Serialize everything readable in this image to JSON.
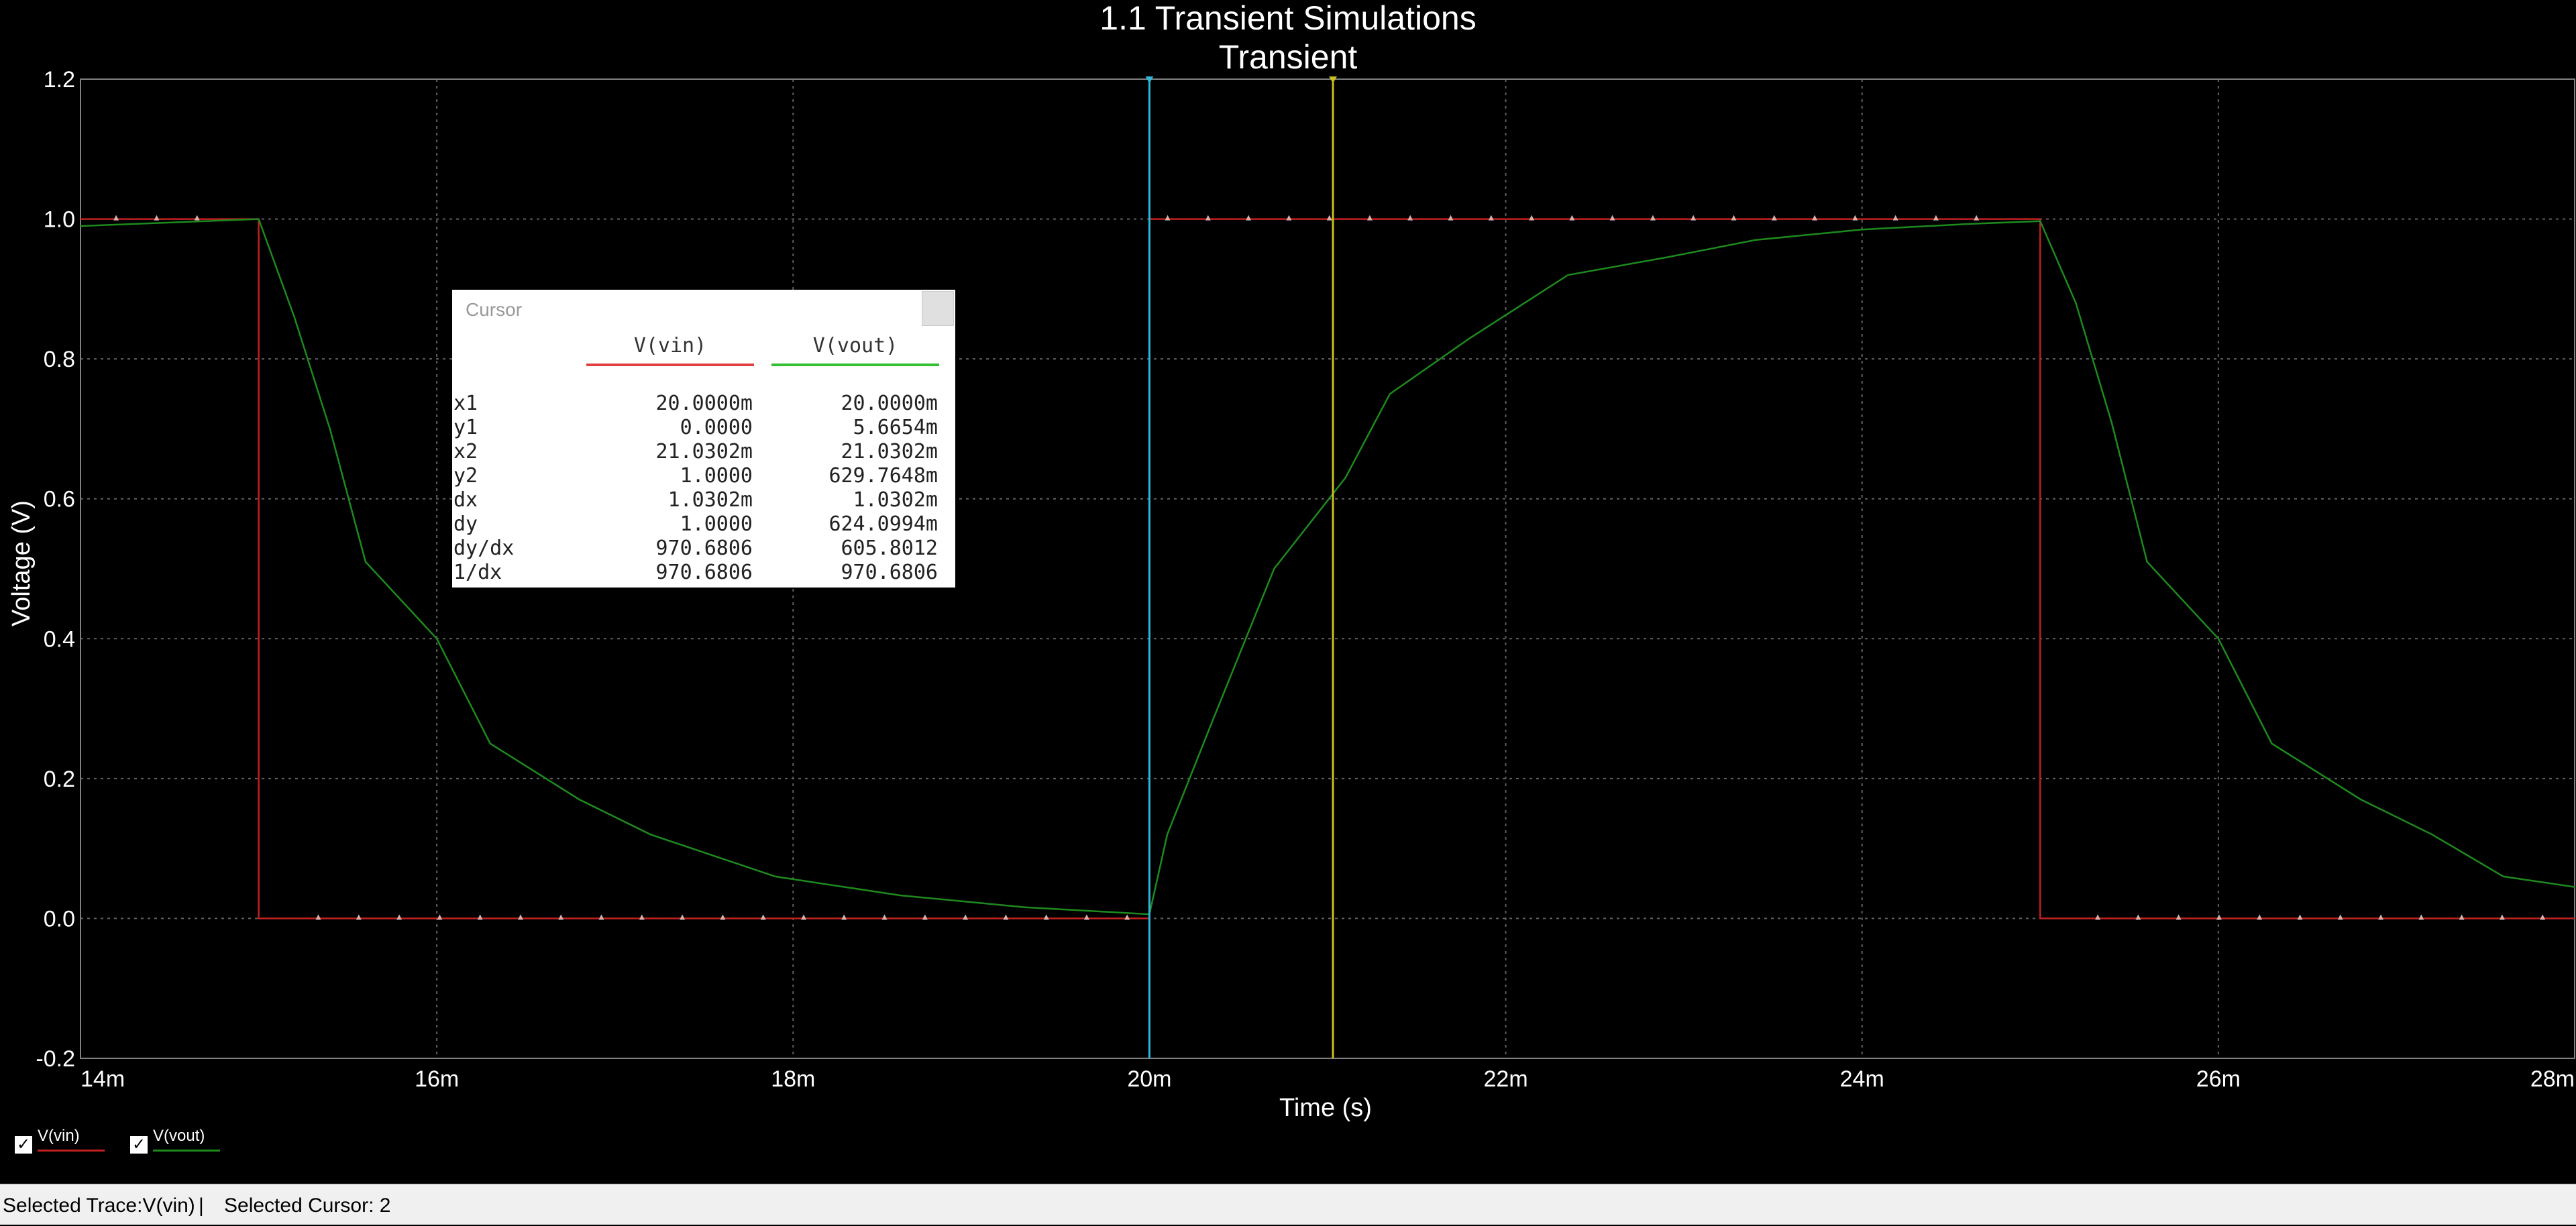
{
  "chart_data": {
    "type": "line",
    "title": "1.1 Transient Simulations",
    "subtitle": "Transient",
    "xlabel": "Time (s)",
    "ylabel": "Voltage (V)",
    "xlim": [
      0.014,
      0.028
    ],
    "ylim": [
      -0.2,
      1.2
    ],
    "x_ticks": [
      {
        "value": 0.014,
        "label": "14m"
      },
      {
        "value": 0.016,
        "label": "16m"
      },
      {
        "value": 0.018,
        "label": "18m"
      },
      {
        "value": 0.02,
        "label": "20m"
      },
      {
        "value": 0.022,
        "label": "22m"
      },
      {
        "value": 0.024,
        "label": "24m"
      },
      {
        "value": 0.026,
        "label": "26m"
      },
      {
        "value": 0.028,
        "label": "28m"
      }
    ],
    "y_ticks": [
      {
        "value": -0.2,
        "label": "-0.2"
      },
      {
        "value": 0.0,
        "label": "0.0"
      },
      {
        "value": 0.2,
        "label": "0.2"
      },
      {
        "value": 0.4,
        "label": "0.4"
      },
      {
        "value": 0.6,
        "label": "0.6"
      },
      {
        "value": 0.8,
        "label": "0.8"
      },
      {
        "value": 1.0,
        "label": "1.0"
      },
      {
        "value": 1.2,
        "label": "1.2"
      }
    ],
    "grid": true,
    "series": [
      {
        "name": "V(vin)",
        "color": "#c02020",
        "x": [
          0.014,
          0.015,
          0.015,
          0.02,
          0.02,
          0.025,
          0.025,
          0.028
        ],
        "y": [
          1.0,
          1.0,
          0.0,
          0.0,
          1.0,
          1.0,
          0.0,
          0.0
        ],
        "marker_x_start": 0.0142,
        "marker_spacing": 0.000227
      },
      {
        "name": "V(vout)",
        "color": "#1e8a1e",
        "x": [
          0.014,
          0.015,
          0.0152,
          0.0154,
          0.0156,
          0.016,
          0.0163,
          0.0168,
          0.0172,
          0.0179,
          0.0186,
          0.0193,
          0.02,
          0.0201,
          0.02035,
          0.0207,
          0.0211,
          0.02135,
          0.0218,
          0.02235,
          0.0229,
          0.0234,
          0.024,
          0.0246,
          0.025,
          0.0252,
          0.0254,
          0.0256,
          0.026,
          0.0263,
          0.0268,
          0.0272,
          0.0276,
          0.028
        ],
        "y": [
          0.99,
          1.0,
          0.86,
          0.7,
          0.51,
          0.4,
          0.25,
          0.17,
          0.12,
          0.06,
          0.033,
          0.016,
          0.006,
          0.12,
          0.28,
          0.5,
          0.63,
          0.75,
          0.83,
          0.92,
          0.945,
          0.97,
          0.985,
          0.993,
          0.997,
          0.88,
          0.71,
          0.51,
          0.4,
          0.25,
          0.17,
          0.12,
          0.06,
          0.045
        ]
      }
    ],
    "cursors": [
      {
        "id": 1,
        "x": 0.02,
        "color": "#2fb8d8"
      },
      {
        "id": 2,
        "x": 0.0210302,
        "color": "#c8c020"
      }
    ]
  },
  "cursor_panel": {
    "title": "Cursor",
    "columns": [
      {
        "label": "V(vin)",
        "color": "#e04040"
      },
      {
        "label": "V(vout)",
        "color": "#30c030"
      }
    ],
    "rows": [
      {
        "label": "x1",
        "vin": "20.0000m",
        "vout": "20.0000m"
      },
      {
        "label": "y1",
        "vin": "0.0000",
        "vout": "5.6654m"
      },
      {
        "label": "x2",
        "vin": "21.0302m",
        "vout": "21.0302m"
      },
      {
        "label": "y2",
        "vin": "1.0000",
        "vout": "629.7648m"
      },
      {
        "label": "dx",
        "vin": "1.0302m",
        "vout": "1.0302m"
      },
      {
        "label": "dy",
        "vin": "1.0000",
        "vout": "624.0994m"
      },
      {
        "label": "dy/dx",
        "vin": "970.6806",
        "vout": "605.8012"
      },
      {
        "label": "1/dx",
        "vin": "970.6806",
        "vout": "970.6806"
      }
    ]
  },
  "legend": [
    {
      "label": "V(vin)",
      "color": "#c02020",
      "checked": true
    },
    {
      "label": "V(vout)",
      "color": "#1e8a1e",
      "checked": true
    }
  ],
  "status_bar": {
    "selected_trace": "Selected Trace:V(vin)",
    "separator": "|",
    "selected_cursor": "Selected Cursor: 2"
  }
}
